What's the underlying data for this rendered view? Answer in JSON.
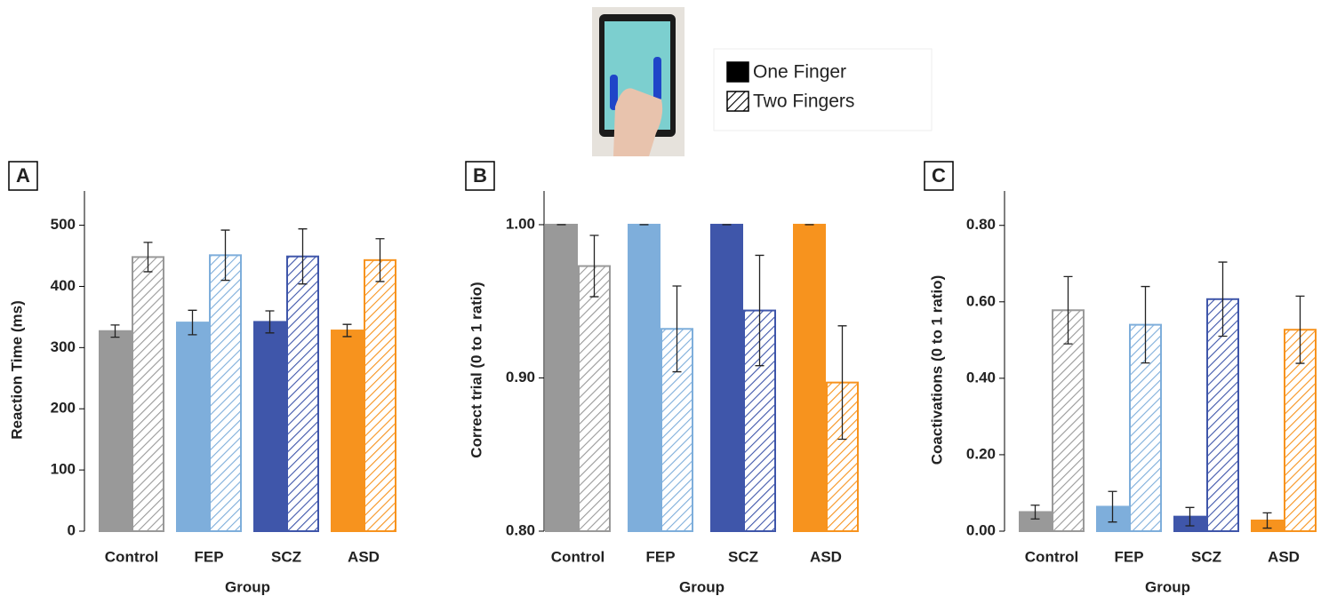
{
  "chart_data": [
    {
      "type": "bar",
      "panel": "A",
      "x_label": "Group",
      "y_label": "Reaction Time (ms)",
      "categories": [
        "Control",
        "FEP",
        "SCZ",
        "ASD"
      ],
      "colors": [
        "#999999",
        "#7eaedb",
        "#3f56aa",
        "#f7931e"
      ],
      "series": [
        {
          "name": "One Finger",
          "color": "#000000",
          "pattern": "solid",
          "values": [
            327,
            341,
            342,
            328
          ],
          "errors": [
            10,
            20,
            18,
            10
          ]
        },
        {
          "name": "Two Fingers",
          "color": "#000000",
          "pattern": "hatch",
          "values": [
            448,
            451,
            449,
            443
          ],
          "errors": [
            24,
            41,
            45,
            35
          ]
        }
      ],
      "ylim": [
        0,
        556
      ],
      "yticks": [
        0,
        100,
        200,
        300,
        400,
        500
      ]
    },
    {
      "type": "bar",
      "panel": "B",
      "x_label": "Group",
      "y_label": "Correct trial (0 to 1 ratio)",
      "categories": [
        "Control",
        "FEP",
        "SCZ",
        "ASD"
      ],
      "colors": [
        "#999999",
        "#7eaedb",
        "#3f56aa",
        "#f7931e"
      ],
      "series": [
        {
          "name": "One Finger",
          "color": "#000000",
          "pattern": "solid",
          "values": [
            1.0,
            1.0,
            1.0,
            1.0
          ],
          "errors": [
            0,
            0,
            0,
            0
          ]
        },
        {
          "name": "Two Fingers",
          "color": "#000000",
          "pattern": "hatch",
          "values": [
            0.973,
            0.932,
            0.944,
            0.897
          ],
          "errors": [
            0.02,
            0.028,
            0.036,
            0.037
          ]
        }
      ],
      "ylim": [
        0.8,
        1.022
      ],
      "yticks": [
        {
          "value": 0.8,
          "label": "0.80"
        },
        {
          "value": 0.9,
          "label": "0.90"
        },
        {
          "value": 1.0,
          "label": "1.00"
        }
      ]
    },
    {
      "type": "bar",
      "panel": "C",
      "x_label": "Group",
      "y_label": "Coactivations (0 to 1 ratio)",
      "categories": [
        "Control",
        "FEP",
        "SCZ",
        "ASD"
      ],
      "colors": [
        "#999999",
        "#7eaedb",
        "#3f56aa",
        "#f7931e"
      ],
      "series": [
        {
          "name": "One Finger",
          "color": "#000000",
          "pattern": "solid",
          "values": [
            0.05,
            0.064,
            0.038,
            0.028
          ],
          "errors": [
            0.018,
            0.04,
            0.024,
            0.02
          ]
        },
        {
          "name": "Two Fingers",
          "color": "#000000",
          "pattern": "hatch",
          "values": [
            0.578,
            0.54,
            0.607,
            0.527
          ],
          "errors": [
            0.088,
            0.1,
            0.097,
            0.088
          ]
        }
      ],
      "ylim": [
        0,
        0.89
      ],
      "yticks": [
        {
          "value": 0,
          "label": "0.00"
        },
        {
          "value": 0.2,
          "label": "0.20"
        },
        {
          "value": 0.4,
          "label": "0.40"
        },
        {
          "value": 0.6,
          "label": "0.60"
        },
        {
          "value": 0.8,
          "label": "0.80"
        }
      ]
    }
  ]
}
